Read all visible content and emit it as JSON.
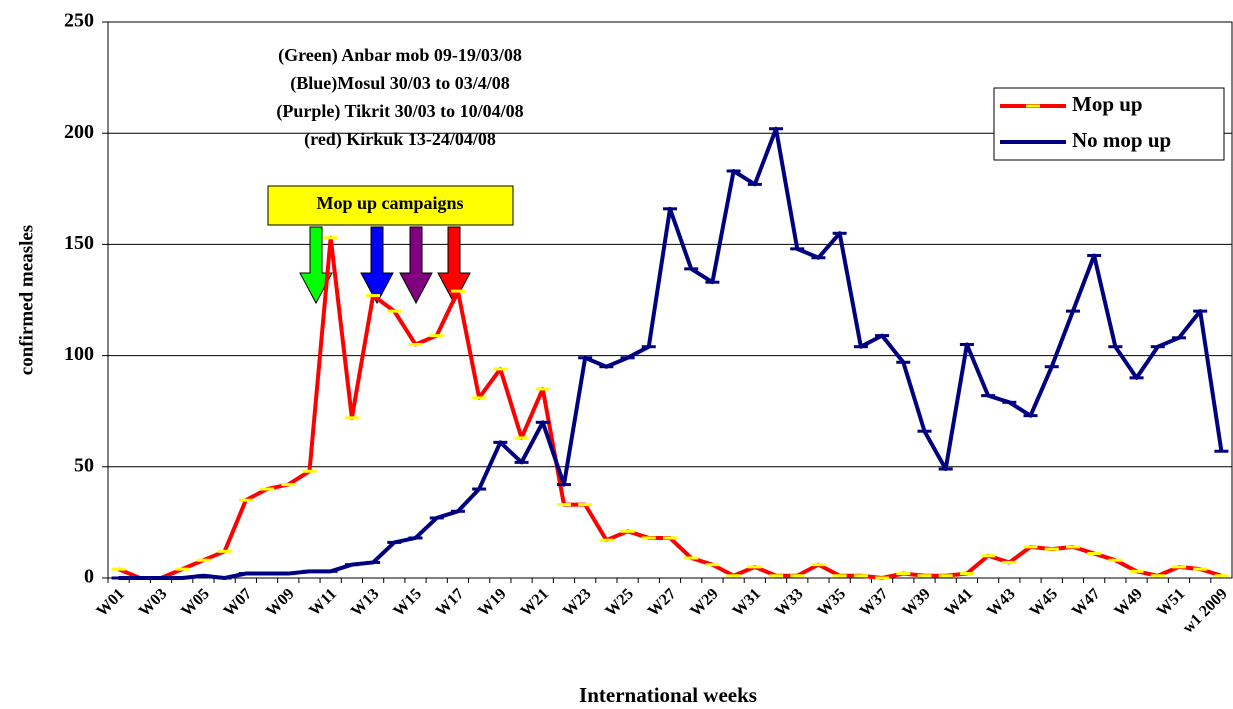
{
  "chart_data": {
    "type": "line",
    "y_label": "confirmed measles",
    "x_label": "International weeks",
    "annotations": [
      "(Green) Anbar mob 09-19/03/08",
      "(Blue)Mosul 30/03 to 03/4/08",
      "(Purple) Tikrit 30/03 to 10/04/08",
      "(red) Kirkuk 13-24/04/08"
    ],
    "campaign_label": "Mop up campaigns",
    "categories": [
      "W01",
      null,
      "W03",
      null,
      "W05",
      null,
      "W07",
      null,
      "W09",
      null,
      "W11",
      null,
      "W13",
      null,
      "W15",
      null,
      "W17",
      null,
      "W19",
      null,
      "W21",
      null,
      "W23",
      null,
      "W25",
      null,
      "W27",
      null,
      "W29",
      null,
      "W31",
      null,
      "W33",
      null,
      "W35",
      null,
      "W37",
      null,
      "W39",
      null,
      "W41",
      null,
      "W43",
      null,
      "W45",
      null,
      "W47",
      null,
      "W49",
      null,
      "W51",
      null,
      "w1 2009"
    ],
    "series": [
      {
        "name": "Mop up",
        "color": "#ff0000",
        "marker_color": "#ffff00",
        "values": [
          4,
          0,
          0,
          4,
          8,
          12,
          35,
          40,
          42,
          48,
          153,
          72,
          127,
          120,
          105,
          109,
          129,
          81,
          94,
          63,
          85,
          33,
          33,
          17,
          21,
          18,
          18,
          9,
          6,
          1,
          5,
          1,
          1,
          6,
          1,
          1,
          0,
          2,
          1,
          1,
          2,
          10,
          7,
          14,
          13,
          14,
          11,
          8,
          3,
          1,
          5,
          4,
          1
        ]
      },
      {
        "name": "No mop up",
        "color": "#000080",
        "marker_color": "#000080",
        "values": [
          0,
          0,
          0,
          0,
          1,
          0,
          2,
          2,
          2,
          3,
          3,
          6,
          7,
          16,
          18,
          27,
          30,
          40,
          61,
          52,
          70,
          42,
          99,
          95,
          99,
          104,
          166,
          139,
          133,
          183,
          177,
          202,
          148,
          144,
          155,
          104,
          109,
          97,
          66,
          49,
          105,
          82,
          79,
          73,
          95,
          120,
          145,
          104,
          90,
          104,
          108,
          120,
          57
        ]
      }
    ],
    "ylim": [
      0,
      250
    ],
    "yticks": [
      0,
      50,
      100,
      150,
      200,
      250
    ],
    "grid": true,
    "legend": "upper right"
  }
}
